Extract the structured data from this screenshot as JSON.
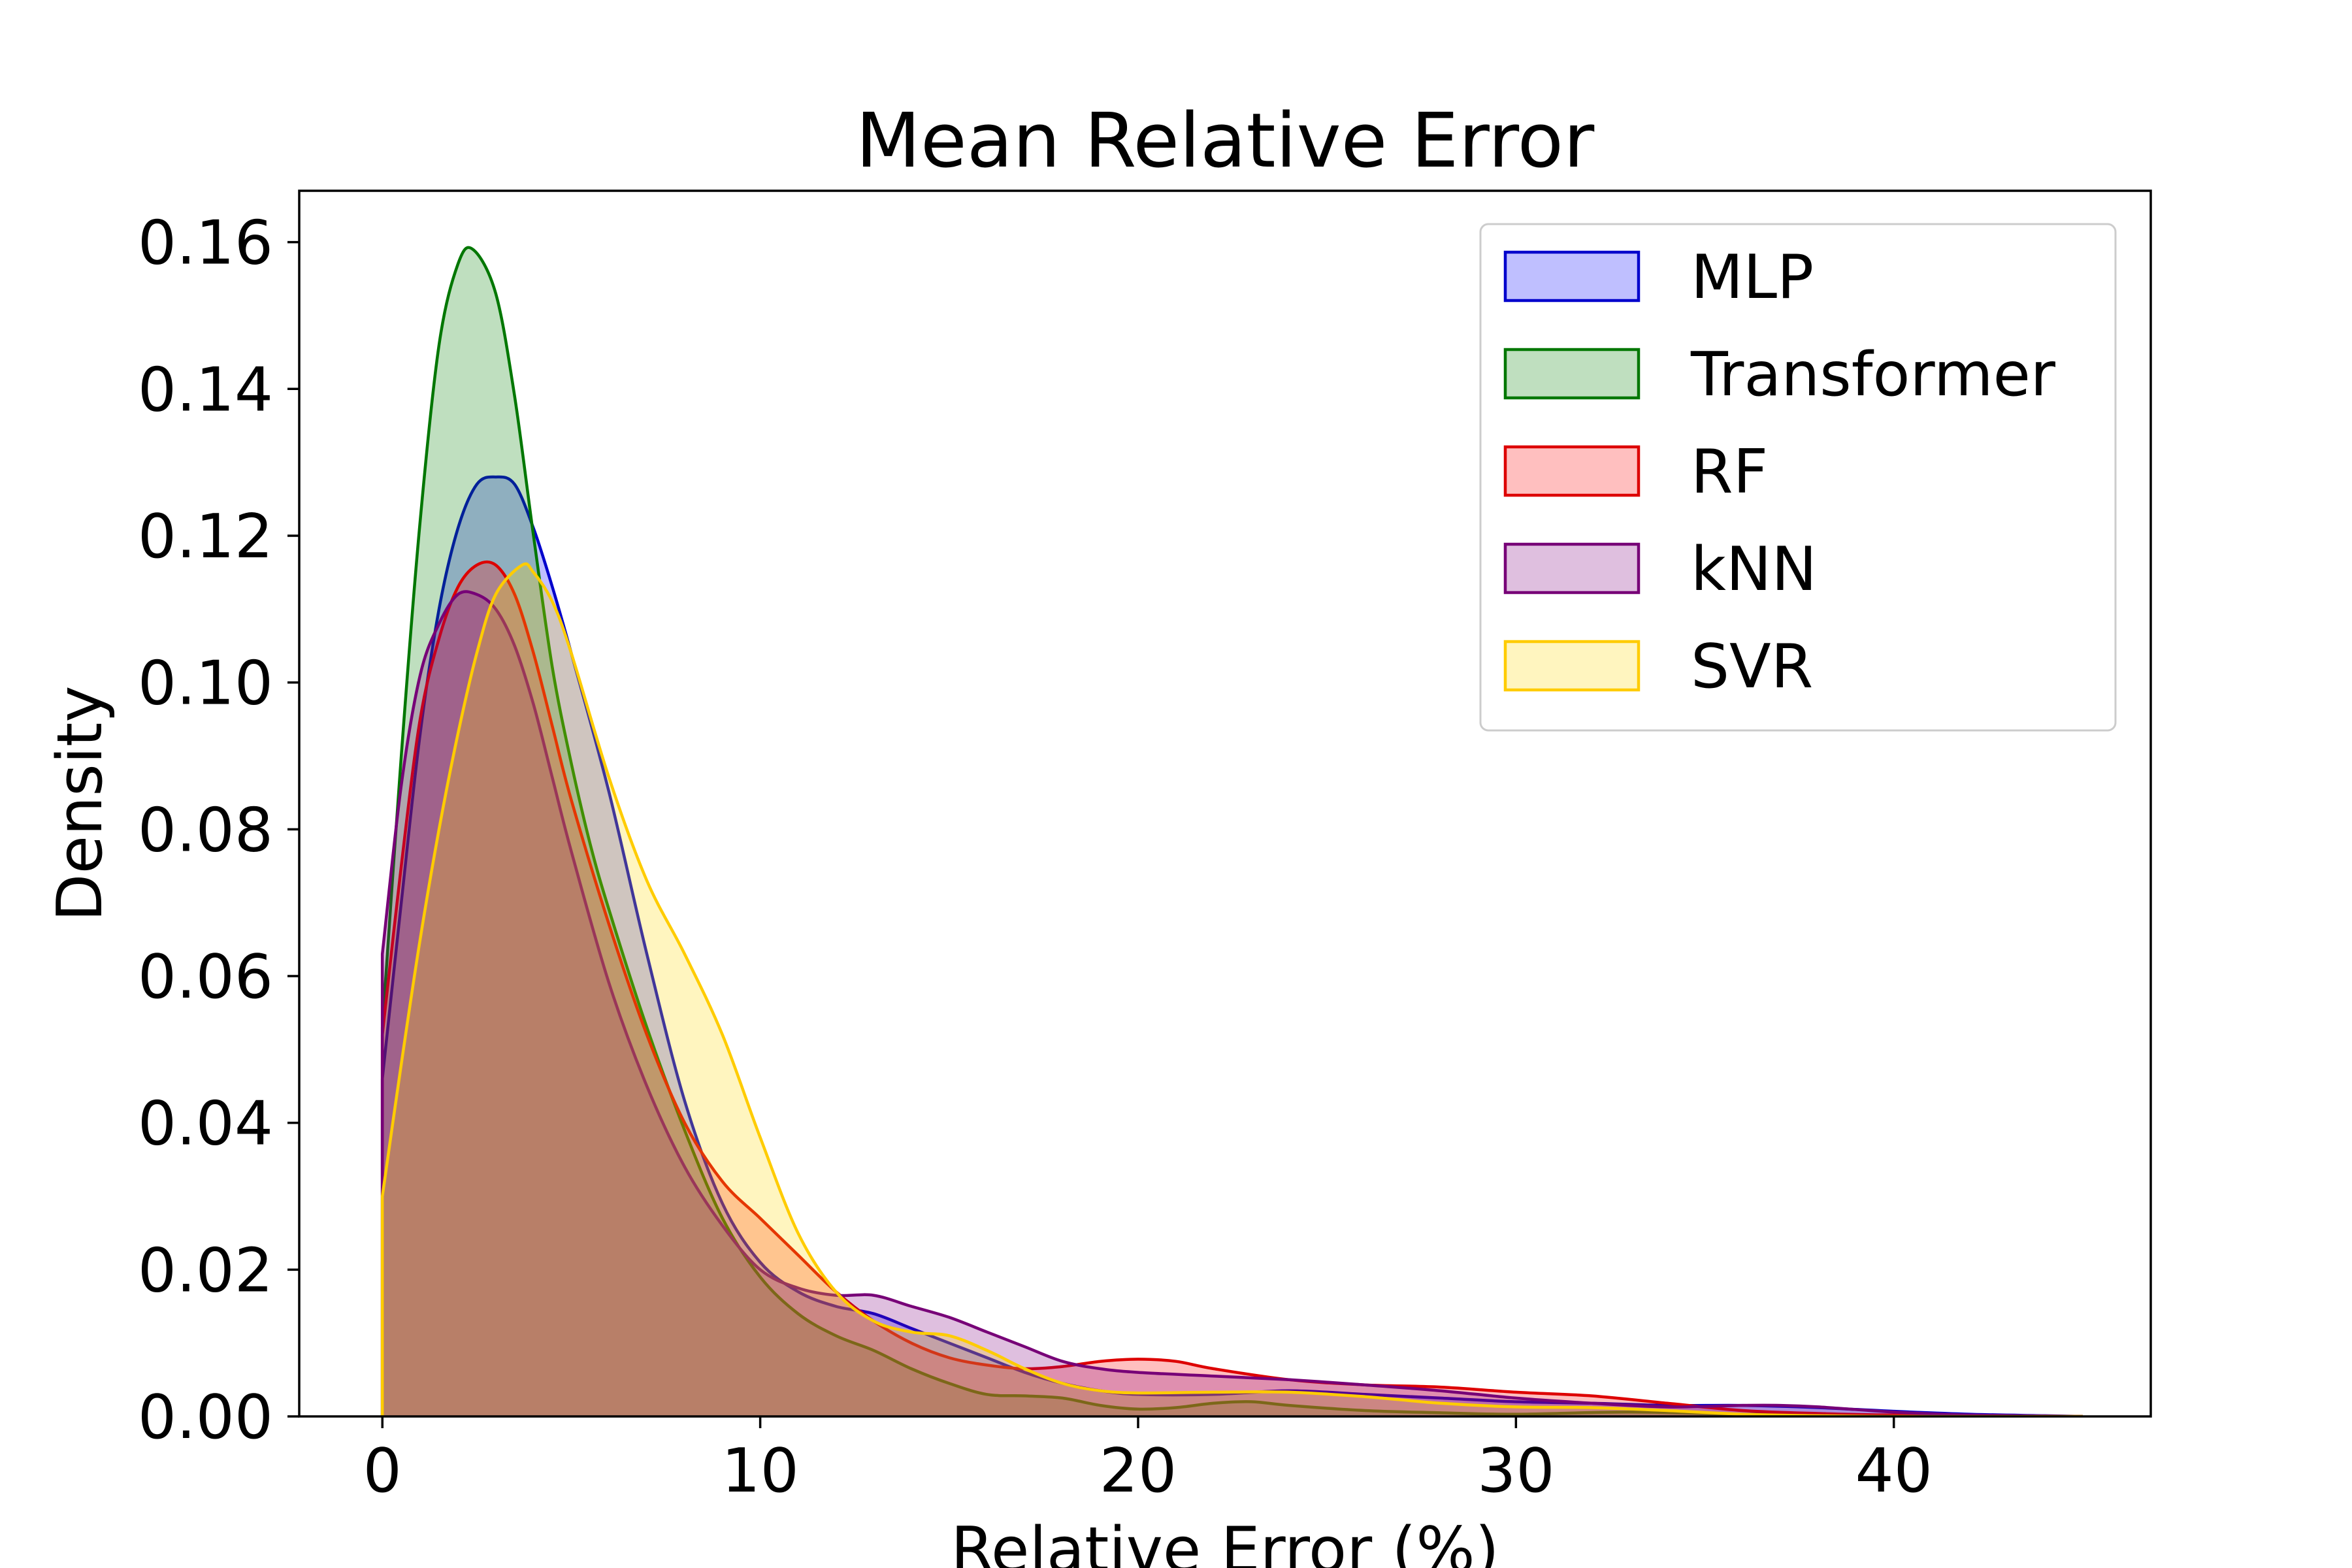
{
  "chart_data": {
    "type": "area",
    "title": "Mean Relative Error",
    "xlabel": "Relative Error (%)",
    "ylabel": "Density",
    "xlim": [
      -2.2,
      46.8
    ],
    "ylim": [
      0,
      0.167
    ],
    "xticks": [
      0,
      10,
      20,
      30,
      40
    ],
    "xtick_labels": [
      "0",
      "10",
      "20",
      "30",
      "40"
    ],
    "yticks": [
      0,
      0.02,
      0.04,
      0.06,
      0.08,
      0.1,
      0.12,
      0.14,
      0.16
    ],
    "ytick_labels": [
      "0.00",
      "0.02",
      "0.04",
      "0.06",
      "0.08",
      "0.10",
      "0.12",
      "0.14",
      "0.16"
    ],
    "grid": false,
    "legend_position": "top-right",
    "series": [
      {
        "name": "MLP",
        "color": "#0000cc",
        "fill": "#0000ff",
        "points": [
          [
            0,
            0.046
          ],
          [
            0.5,
            0.07
          ],
          [
            1,
            0.093
          ],
          [
            1.5,
            0.11
          ],
          [
            2,
            0.121
          ],
          [
            2.5,
            0.127
          ],
          [
            3,
            0.128
          ],
          [
            3.5,
            0.127
          ],
          [
            4,
            0.121
          ],
          [
            4.5,
            0.113
          ],
          [
            5,
            0.104
          ],
          [
            6,
            0.085
          ],
          [
            7,
            0.063
          ],
          [
            8,
            0.043
          ],
          [
            9,
            0.029
          ],
          [
            10,
            0.021
          ],
          [
            11,
            0.017
          ],
          [
            12,
            0.015
          ],
          [
            13,
            0.014
          ],
          [
            14,
            0.012
          ],
          [
            15,
            0.01
          ],
          [
            16,
            0.008
          ],
          [
            17,
            0.006
          ],
          [
            18,
            0.0045
          ],
          [
            19,
            0.0035
          ],
          [
            20,
            0.003
          ],
          [
            22,
            0.003
          ],
          [
            24,
            0.0035
          ],
          [
            26,
            0.003
          ],
          [
            28,
            0.0025
          ],
          [
            30,
            0.002
          ],
          [
            32,
            0.0018
          ],
          [
            34,
            0.0015
          ],
          [
            36,
            0.0015
          ],
          [
            38,
            0.0012
          ],
          [
            40,
            0.0007
          ],
          [
            42,
            0.0003
          ],
          [
            44,
            0.0001
          ],
          [
            45,
            0.0
          ]
        ]
      },
      {
        "name": "Transformer",
        "color": "#007700",
        "fill": "#008000",
        "points": [
          [
            0,
            0.053
          ],
          [
            0.5,
            0.09
          ],
          [
            1,
            0.122
          ],
          [
            1.5,
            0.146
          ],
          [
            2,
            0.157
          ],
          [
            2.4,
            0.159
          ],
          [
            3,
            0.153
          ],
          [
            3.5,
            0.139
          ],
          [
            4,
            0.12
          ],
          [
            4.5,
            0.102
          ],
          [
            5,
            0.089
          ],
          [
            5.5,
            0.078
          ],
          [
            6,
            0.069
          ],
          [
            7,
            0.053
          ],
          [
            8,
            0.039
          ],
          [
            9,
            0.027
          ],
          [
            10,
            0.019
          ],
          [
            11,
            0.014
          ],
          [
            12,
            0.011
          ],
          [
            13,
            0.009
          ],
          [
            14,
            0.0065
          ],
          [
            15,
            0.0045
          ],
          [
            16,
            0.003
          ],
          [
            17,
            0.0028
          ],
          [
            18,
            0.0025
          ],
          [
            19,
            0.0015
          ],
          [
            20,
            0.001
          ],
          [
            21,
            0.0012
          ],
          [
            22,
            0.0018
          ],
          [
            23,
            0.002
          ],
          [
            24,
            0.0015
          ],
          [
            26,
            0.0008
          ],
          [
            28,
            0.0005
          ],
          [
            30,
            0.0003
          ],
          [
            33,
            0.0006
          ],
          [
            36,
            0.0003
          ],
          [
            40,
            0.0001
          ],
          [
            45,
            0.0
          ]
        ]
      },
      {
        "name": "RF",
        "color": "#dd0000",
        "fill": "#ff0000",
        "points": [
          [
            0,
            0.052
          ],
          [
            0.5,
            0.075
          ],
          [
            1,
            0.095
          ],
          [
            1.5,
            0.106
          ],
          [
            2,
            0.113
          ],
          [
            2.5,
            0.116
          ],
          [
            3,
            0.116
          ],
          [
            3.5,
            0.112
          ],
          [
            4,
            0.104
          ],
          [
            4.5,
            0.094
          ],
          [
            5,
            0.084
          ],
          [
            6,
            0.067
          ],
          [
            7,
            0.052
          ],
          [
            8,
            0.04
          ],
          [
            9,
            0.032
          ],
          [
            10,
            0.027
          ],
          [
            11,
            0.022
          ],
          [
            12,
            0.017
          ],
          [
            13,
            0.013
          ],
          [
            14,
            0.01
          ],
          [
            15,
            0.008
          ],
          [
            16,
            0.007
          ],
          [
            17,
            0.0065
          ],
          [
            18,
            0.0068
          ],
          [
            19,
            0.0075
          ],
          [
            20,
            0.0078
          ],
          [
            21,
            0.0075
          ],
          [
            22,
            0.0065
          ],
          [
            24,
            0.005
          ],
          [
            26,
            0.0043
          ],
          [
            28,
            0.004
          ],
          [
            30,
            0.0033
          ],
          [
            32,
            0.0028
          ],
          [
            34,
            0.0018
          ],
          [
            36,
            0.0008
          ],
          [
            38,
            0.0004
          ],
          [
            40,
            0.0002
          ],
          [
            45,
            0.0
          ]
        ]
      },
      {
        "name": "kNN",
        "color": "#770077",
        "fill": "#800080",
        "points": [
          [
            0,
            0.063
          ],
          [
            0.5,
            0.086
          ],
          [
            1,
            0.101
          ],
          [
            1.5,
            0.108
          ],
          [
            2,
            0.112
          ],
          [
            2.5,
            0.112
          ],
          [
            3,
            0.11
          ],
          [
            3.5,
            0.105
          ],
          [
            4,
            0.097
          ],
          [
            4.5,
            0.087
          ],
          [
            5,
            0.077
          ],
          [
            6,
            0.059
          ],
          [
            7,
            0.045
          ],
          [
            8,
            0.034
          ],
          [
            9,
            0.026
          ],
          [
            10,
            0.02
          ],
          [
            11,
            0.0175
          ],
          [
            12,
            0.0165
          ],
          [
            13,
            0.0165
          ],
          [
            14,
            0.015
          ],
          [
            15,
            0.0135
          ],
          [
            16,
            0.0115
          ],
          [
            17,
            0.0095
          ],
          [
            18,
            0.0075
          ],
          [
            19,
            0.0065
          ],
          [
            20,
            0.006
          ],
          [
            22,
            0.0055
          ],
          [
            24,
            0.005
          ],
          [
            26,
            0.0043
          ],
          [
            28,
            0.0035
          ],
          [
            30,
            0.0025
          ],
          [
            32,
            0.0018
          ],
          [
            34,
            0.0013
          ],
          [
            36,
            0.0015
          ],
          [
            37,
            0.0015
          ],
          [
            38,
            0.0013
          ],
          [
            40,
            0.0006
          ],
          [
            42,
            0.0002
          ],
          [
            45,
            0.0
          ]
        ]
      },
      {
        "name": "SVR",
        "color": "#ffcc00",
        "fill": "#ffd700",
        "points": [
          [
            0,
            0.03
          ],
          [
            0.5,
            0.048
          ],
          [
            1,
            0.065
          ],
          [
            1.5,
            0.08
          ],
          [
            2,
            0.093
          ],
          [
            2.5,
            0.104
          ],
          [
            3,
            0.112
          ],
          [
            3.7,
            0.116
          ],
          [
            4,
            0.115
          ],
          [
            4.5,
            0.111
          ],
          [
            5,
            0.104
          ],
          [
            6,
            0.087
          ],
          [
            7,
            0.073
          ],
          [
            8,
            0.063
          ],
          [
            9,
            0.052
          ],
          [
            10,
            0.038
          ],
          [
            11,
            0.025
          ],
          [
            12,
            0.017
          ],
          [
            13,
            0.013
          ],
          [
            14,
            0.0115
          ],
          [
            15,
            0.011
          ],
          [
            16,
            0.009
          ],
          [
            17,
            0.0065
          ],
          [
            18,
            0.0045
          ],
          [
            19,
            0.0035
          ],
          [
            20,
            0.0032
          ],
          [
            22,
            0.0033
          ],
          [
            24,
            0.0033
          ],
          [
            26,
            0.0027
          ],
          [
            28,
            0.0018
          ],
          [
            30,
            0.0013
          ],
          [
            32,
            0.0012
          ],
          [
            34,
            0.0008
          ],
          [
            36,
            0.0003
          ],
          [
            38,
            0.0001
          ],
          [
            40,
            0.0
          ],
          [
            45,
            0.0
          ]
        ]
      }
    ]
  }
}
